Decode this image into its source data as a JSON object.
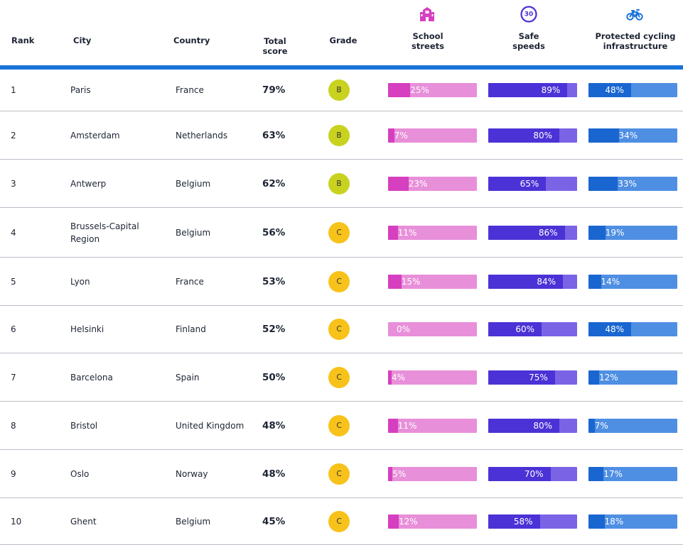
{
  "headers": {
    "rank": "Rank",
    "city": "City",
    "country": "Country",
    "total_score": [
      "Total",
      "score"
    ],
    "grade": "Grade",
    "school_streets": [
      "School",
      "streets"
    ],
    "safe_speeds": [
      "Safe",
      "speeds"
    ],
    "cycling": [
      "Protected cycling",
      "infrastructure"
    ]
  },
  "icons": {
    "school_streets": "school-icon",
    "safe_speeds": "speed-limit-30-icon",
    "cycling": "bicycle-icon",
    "speed_sign_text": "30"
  },
  "colors": {
    "accent_bar": "#1a73d9",
    "school_fill": "#d63fbf",
    "school_track": "#e88fd9",
    "speed_fill": "#4a32d6",
    "speed_track": "#7b63e6",
    "cycling_fill": "#1a66d1",
    "cycling_track": "#4f8fe3",
    "grade_B": "#c9d21e",
    "grade_C": "#f7c21a"
  },
  "chart_data": {
    "type": "table",
    "columns": [
      "Rank",
      "City",
      "Country",
      "Total score",
      "Grade",
      "School streets",
      "Safe speeds",
      "Protected cycling infrastructure"
    ],
    "rows": [
      {
        "rank": "1",
        "city": [
          "Paris"
        ],
        "country": "France",
        "score": "79%",
        "grade": "B",
        "school": 25,
        "speed": 89,
        "cycle": 48
      },
      {
        "rank": "2",
        "city": [
          "Amsterdam"
        ],
        "country": "Netherlands",
        "score": "63%",
        "grade": "B",
        "school": 7,
        "speed": 80,
        "cycle": 34
      },
      {
        "rank": "3",
        "city": [
          "Antwerp"
        ],
        "country": "Belgium",
        "score": "62%",
        "grade": "B",
        "school": 23,
        "speed": 65,
        "cycle": 33
      },
      {
        "rank": "4",
        "city": [
          "Brussels-Capital",
          "Region"
        ],
        "country": "Belgium",
        "score": "56%",
        "grade": "C",
        "school": 11,
        "speed": 86,
        "cycle": 19
      },
      {
        "rank": "5",
        "city": [
          "Lyon"
        ],
        "country": "France",
        "score": "53%",
        "grade": "C",
        "school": 15,
        "speed": 84,
        "cycle": 14
      },
      {
        "rank": "6",
        "city": [
          "Helsinki"
        ],
        "country": "Finland",
        "score": "52%",
        "grade": "C",
        "school": 0,
        "speed": 60,
        "cycle": 48
      },
      {
        "rank": "7",
        "city": [
          "Barcelona"
        ],
        "country": "Spain",
        "score": "50%",
        "grade": "C",
        "school": 4,
        "speed": 75,
        "cycle": 12
      },
      {
        "rank": "8",
        "city": [
          "Bristol"
        ],
        "country": "United Kingdom",
        "score": "48%",
        "grade": "C",
        "school": 11,
        "speed": 80,
        "cycle": 7
      },
      {
        "rank": "9",
        "city": [
          "Oslo"
        ],
        "country": "Norway",
        "score": "48%",
        "grade": "C",
        "school": 5,
        "speed": 70,
        "cycle": 17
      },
      {
        "rank": "10",
        "city": [
          "Ghent"
        ],
        "country": "Belgium",
        "score": "45%",
        "grade": "C",
        "school": 12,
        "speed": 58,
        "cycle": 18
      }
    ]
  }
}
